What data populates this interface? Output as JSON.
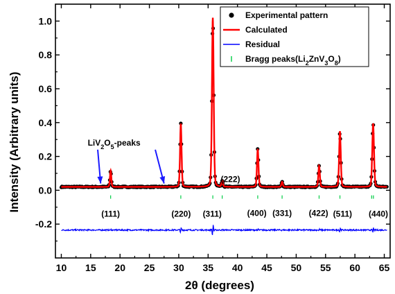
{
  "chart_data": {
    "type": "line",
    "xlabel": "2θ (degrees)",
    "ylabel": "Intensity (Arbitrary units)",
    "xlim": [
      9,
      66
    ],
    "ylim": [
      -0.4,
      1.1
    ],
    "x_ticks": [
      "10",
      "15",
      "20",
      "25",
      "30",
      "35",
      "40",
      "45",
      "50",
      "55",
      "60",
      "65"
    ],
    "y_ticks": [
      "-0.2",
      "0.0",
      "0.2",
      "0.4",
      "0.6",
      "0.8",
      "1.0"
    ],
    "grid": false,
    "legend_position": "top-right",
    "legend": [
      {
        "label": "Experimental pattern",
        "symbol": "dot",
        "color": "#000000"
      },
      {
        "label": "Calculated",
        "symbol": "line",
        "color": "#ff0000"
      },
      {
        "label": "Residual",
        "symbol": "line",
        "color": "#0000ff"
      },
      {
        "label_main": "Bragg peaks(Li",
        "sub1": "2",
        "mid1": "ZnV",
        "sub2": "3",
        "mid2": "O",
        "sub3": "8",
        "tail": ")",
        "symbol": "tick",
        "color": "#00cc44"
      }
    ],
    "baseline": 0.02,
    "residual_offset": -0.235,
    "peaks": [
      {
        "x": 18.4,
        "y": 0.095,
        "w": 0.12
      },
      {
        "x": 30.35,
        "y": 0.375,
        "w": 0.13
      },
      {
        "x": 35.8,
        "y": 1.0,
        "w": 0.15
      },
      {
        "x": 37.4,
        "y": 0.035,
        "w": 0.12
      },
      {
        "x": 43.45,
        "y": 0.225,
        "w": 0.13
      },
      {
        "x": 47.6,
        "y": 0.03,
        "w": 0.12
      },
      {
        "x": 53.9,
        "y": 0.125,
        "w": 0.13
      },
      {
        "x": 57.45,
        "y": 0.33,
        "w": 0.14
      },
      {
        "x": 63.1,
        "y": 0.375,
        "w": 0.15
      }
    ],
    "bragg_positions": [
      18.4,
      30.35,
      35.8,
      37.4,
      43.45,
      47.6,
      53.9,
      57.45,
      62.85,
      63.15
    ],
    "miller_labels": [
      {
        "text": "(111)",
        "x": 18.4,
        "y": -0.14
      },
      {
        "text": "(220)",
        "x": 30.4,
        "y": -0.14
      },
      {
        "text": "(311)",
        "x": 35.7,
        "y": -0.14
      },
      {
        "text": "(222)",
        "x": 38.8,
        "y": 0.065
      },
      {
        "text": "(400)",
        "x": 43.3,
        "y": -0.135
      },
      {
        "text": "(331)",
        "x": 47.6,
        "y": -0.135
      },
      {
        "text": "(422)",
        "x": 53.8,
        "y": -0.135
      },
      {
        "text": "(511)",
        "x": 57.9,
        "y": -0.14
      },
      {
        "text": "(440)",
        "x": 64.0,
        "y": -0.14
      }
    ],
    "impurity_annotation": {
      "text_main": "LiV",
      "sub1": "2",
      "mid": "O",
      "sub2": "5",
      "tail": "-peaks",
      "text_x": 14.5,
      "text_y": 0.28,
      "arrows": [
        {
          "from": [
            16.2,
            0.24
          ],
          "to": [
            16.7,
            0.04
          ]
        },
        {
          "from": [
            26.0,
            0.24
          ],
          "to": [
            27.5,
            0.04
          ]
        }
      ]
    }
  }
}
